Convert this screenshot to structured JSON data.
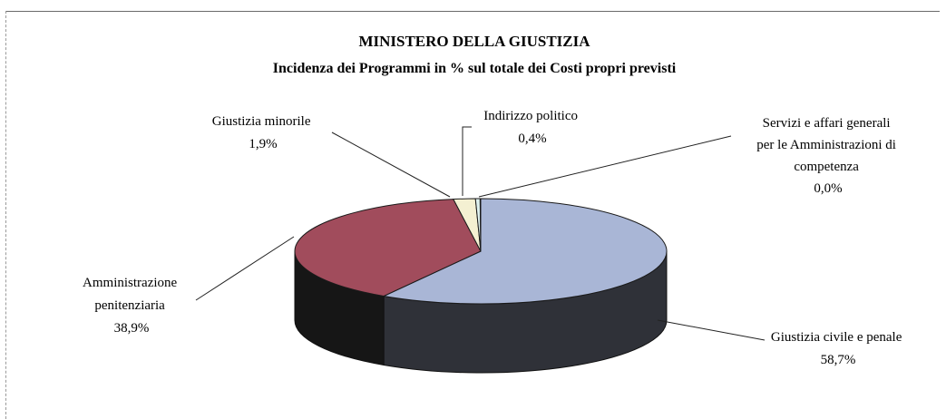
{
  "chart_data": {
    "type": "pie",
    "title": "MINISTERO DELLA GIUSTIZIA",
    "subtitle": "Incidenza dei Programmi in % sul totale dei Costi propri previsti",
    "slices": [
      {
        "name": "Giustizia civile e penale",
        "value": 58.7,
        "label_lines": [
          "Giustizia civile e penale"
        ],
        "pct_label": "58,7%",
        "color": "#a9b6d6",
        "side_color": "#2f3138"
      },
      {
        "name": "Amministrazione penitenziaria",
        "value": 38.9,
        "label_lines": [
          "Amministrazione",
          "penitenziaria"
        ],
        "pct_label": "38,9%",
        "color": "#a14c5c",
        "side_color": "#161616"
      },
      {
        "name": "Giustizia minorile",
        "value": 1.9,
        "label_lines": [
          "Giustizia minorile"
        ],
        "pct_label": "1,9%",
        "color": "#f4f0d2",
        "side_color": "#2a2a2a"
      },
      {
        "name": "Indirizzo politico",
        "value": 0.4,
        "label_lines": [
          "Indirizzo politico"
        ],
        "pct_label": "0,4%",
        "color": "#ddf0ee",
        "side_color": "#2a2a2a"
      },
      {
        "name": "Servizi e affari generali per le Amministrazioni di competenza",
        "value": 0.05,
        "label_lines": [
          "Servizi e affari generali",
          "per le Amministrazioni di",
          "competenza"
        ],
        "pct_label": "0,0%",
        "color": "#eeeeee",
        "side_color": "#2a2a2a"
      }
    ]
  }
}
